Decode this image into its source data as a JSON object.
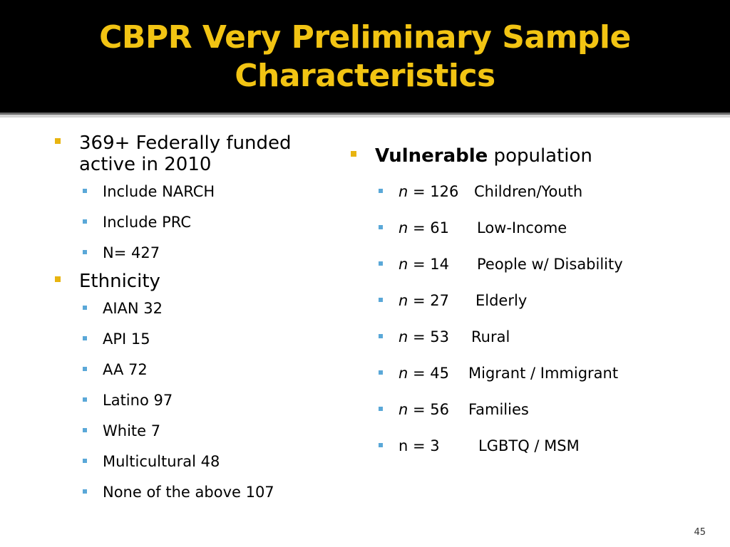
{
  "title": {
    "line1": "CBPR Very Preliminary Sample",
    "line2": "Characteristics"
  },
  "left": {
    "items": [
      {
        "text_line1": "369+ Federally funded",
        "text_line2": "active in 2010",
        "subitems": [
          "Include NARCH",
          "Include PRC",
          "N= 427"
        ]
      },
      {
        "text": "Ethnicity",
        "subitems": [
          "AIAN 32",
          "API 15",
          "AA 72",
          "Latino 97",
          "White 7",
          "Multicultural 48",
          "None of the above 107"
        ]
      }
    ]
  },
  "right": {
    "heading_bold": "Vulnerable",
    "heading_rest": " population",
    "rows": [
      {
        "n": "n",
        "eq": " = 126",
        "label": "Children/Youth"
      },
      {
        "n": "n",
        "eq": " = 61",
        "label": "Low-Income"
      },
      {
        "n": "n",
        "eq": " = 14",
        "label": "People w/ Disability"
      },
      {
        "n": "n",
        "eq": " = 27",
        "label": "Elderly"
      },
      {
        "n": "n",
        "eq": " = 53",
        "label": "Rural"
      },
      {
        "n": "n",
        "eq": " = 45",
        "label": "Migrant / Immigrant"
      },
      {
        "n": "n",
        "eq": " = 56",
        "label": "Families"
      },
      {
        "n": "n",
        "eq": " = 3",
        "label": "LGBTQ / MSM"
      }
    ]
  },
  "page_number": "45",
  "colors": {
    "title_text": "#f2c413",
    "title_background": "#000000",
    "level1_bullet": "#e8b410",
    "level2_bullet": "#5aa8d8"
  }
}
